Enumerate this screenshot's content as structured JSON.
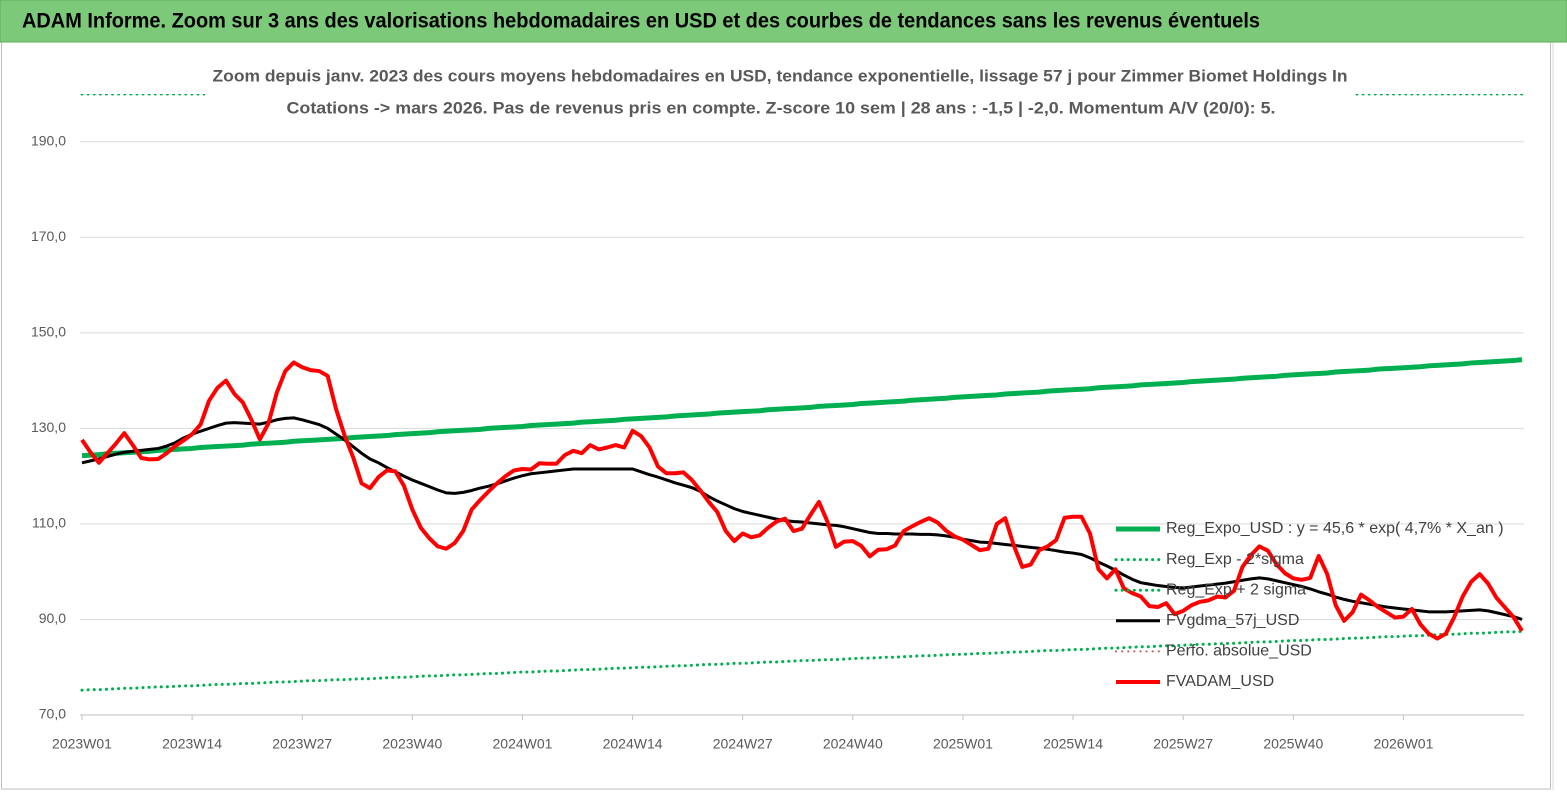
{
  "chart_data": {
    "type": "line",
    "title": "ADAM Informe. Zoom sur 3 ans des valorisations hebdomadaires en USD et des courbes de tendances sans les revenus éventuels",
    "subtitle": [
      "Zoom depuis janv. 2023 des cours moyens hebdomadaires en USD, tendance exponentielle, lissage 57 j pour Zimmer Biomet Holdings In",
      "Cotations -> mars 2026. Pas de revenus pris en  compte. Z-score 10 sem  | 28 ans : -1,5 | -2,0. Momentum A/V (20/0): 5."
    ],
    "ylim": [
      70,
      200
    ],
    "yticks": [
      {
        "value": 70,
        "label": "70,0"
      },
      {
        "value": 90,
        "label": "90,0"
      },
      {
        "value": 110,
        "label": "110,0"
      },
      {
        "value": 130,
        "label": "130,0"
      },
      {
        "value": 150,
        "label": "150,0"
      },
      {
        "value": 170,
        "label": "170,0"
      },
      {
        "value": 190,
        "label": "190,0"
      }
    ],
    "grid": true,
    "legend": "right",
    "categories": [
      "2023W01",
      null,
      null,
      null,
      null,
      null,
      null,
      null,
      null,
      null,
      null,
      null,
      null,
      "2023W14",
      null,
      null,
      null,
      null,
      null,
      null,
      null,
      null,
      null,
      null,
      null,
      null,
      "2023W27",
      null,
      null,
      null,
      null,
      null,
      null,
      null,
      null,
      null,
      null,
      null,
      null,
      "2023W40",
      null,
      null,
      null,
      null,
      null,
      null,
      null,
      null,
      null,
      null,
      null,
      null,
      "2024W01",
      null,
      null,
      null,
      null,
      null,
      null,
      null,
      null,
      null,
      null,
      null,
      null,
      "2024W14",
      null,
      null,
      null,
      null,
      null,
      null,
      null,
      null,
      null,
      null,
      null,
      null,
      "2024W27",
      null,
      null,
      null,
      null,
      null,
      null,
      null,
      null,
      null,
      null,
      null,
      null,
      "2024W40",
      null,
      null,
      null,
      null,
      null,
      null,
      null,
      null,
      null,
      null,
      null,
      null,
      "2025W01",
      null,
      null,
      null,
      null,
      null,
      null,
      null,
      null,
      null,
      null,
      null,
      null,
      "2025W14",
      null,
      null,
      null,
      null,
      null,
      null,
      null,
      null,
      null,
      null,
      null,
      null,
      "2025W27",
      null,
      null,
      null,
      null,
      null,
      null,
      null,
      null,
      null,
      null,
      null,
      null,
      "2025W40",
      null,
      null,
      null,
      null,
      null,
      null,
      null,
      null,
      null,
      null,
      null,
      null,
      "2026W01",
      null,
      null,
      null,
      null,
      null,
      null,
      null,
      null,
      null,
      null,
      null,
      null,
      null,
      null
    ],
    "series": [
      {
        "name": "Reg_Expo_USD : y = 45,6 * exp( 4,7% *  X_an )",
        "color": "#00b050",
        "style": "solid",
        "width": 5,
        "values": [
          124.3,
          124.4,
          124.5,
          124.7,
          124.8,
          124.9,
          125.0,
          125.1,
          125.2,
          125.4,
          125.5,
          125.6,
          125.7,
          125.8,
          126.0,
          126.1,
          126.2,
          126.3,
          126.4,
          126.5,
          126.7,
          126.8,
          126.9,
          127.0,
          127.1,
          127.3,
          127.4,
          127.5,
          127.6,
          127.7,
          127.8,
          127.9,
          128.1,
          128.2,
          128.3,
          128.4,
          128.5,
          128.7,
          128.8,
          128.9,
          129.0,
          129.1,
          129.3,
          129.4,
          129.5,
          129.6,
          129.7,
          129.8,
          130.0,
          130.1,
          130.2,
          130.3,
          130.4,
          130.6,
          130.7,
          130.8,
          130.9,
          131.0,
          131.1,
          131.3,
          131.4,
          131.5,
          131.6,
          131.7,
          131.9,
          132.0,
          132.1,
          132.2,
          132.3,
          132.4,
          132.6,
          132.7,
          132.8,
          132.9,
          133.0,
          133.2,
          133.3,
          133.4,
          133.5,
          133.6,
          133.7,
          133.9,
          134.0,
          134.1,
          134.2,
          134.3,
          134.4,
          134.6,
          134.7,
          134.8,
          134.9,
          135.0,
          135.2,
          135.3,
          135.4,
          135.5,
          135.6,
          135.7,
          135.9,
          136.0,
          136.1,
          136.2,
          136.3,
          136.5,
          136.6,
          136.7,
          136.8,
          136.9,
          137.0,
          137.2,
          137.3,
          137.4,
          137.5,
          137.6,
          137.8,
          137.9,
          138.0,
          138.1,
          138.2,
          138.3,
          138.5,
          138.6,
          138.7,
          138.8,
          138.9,
          139.1,
          139.2,
          139.3,
          139.4,
          139.5,
          139.6,
          139.8,
          139.9,
          140.0,
          140.1,
          140.2,
          140.3,
          140.5,
          140.6,
          140.7,
          140.8,
          140.9,
          141.1,
          141.2,
          141.3,
          141.4,
          141.5,
          141.6,
          141.8,
          141.9,
          142.0,
          142.1,
          142.2,
          142.4,
          142.5,
          142.6,
          142.7,
          142.8,
          142.9,
          143.1,
          143.2,
          143.3,
          143.4,
          143.5,
          143.7,
          143.8,
          143.9,
          144.0,
          144.1,
          144.2,
          144.4
        ]
      },
      {
        "name": "Reg_Exp - 2*sigma",
        "color": "#00b050",
        "style": "dotted",
        "width": 3,
        "values": [
          75.2,
          75.3,
          75.3,
          75.4,
          75.5,
          75.6,
          75.6,
          75.7,
          75.8,
          75.9,
          75.9,
          76.0,
          76.1,
          76.1,
          76.2,
          76.3,
          76.4,
          76.4,
          76.5,
          76.6,
          76.6,
          76.7,
          76.8,
          76.9,
          76.9,
          77.0,
          77.1,
          77.2,
          77.2,
          77.3,
          77.4,
          77.4,
          77.5,
          77.6,
          77.6,
          77.7,
          77.8,
          77.9,
          77.9,
          78.0,
          78.1,
          78.2,
          78.2,
          78.3,
          78.4,
          78.4,
          78.5,
          78.6,
          78.7,
          78.7,
          78.8,
          78.9,
          79.0,
          79.0,
          79.1,
          79.2,
          79.2,
          79.3,
          79.4,
          79.5,
          79.5,
          79.6,
          79.7,
          79.8,
          79.8,
          79.9,
          80.0,
          80.0,
          80.1,
          80.2,
          80.3,
          80.3,
          80.4,
          80.5,
          80.6,
          80.6,
          80.7,
          80.8,
          80.8,
          80.9,
          81.0,
          81.1,
          81.1,
          81.2,
          81.3,
          81.4,
          81.4,
          81.5,
          81.6,
          81.6,
          81.7,
          81.8,
          81.9,
          81.9,
          82.0,
          82.1,
          82.1,
          82.2,
          82.3,
          82.4,
          82.4,
          82.5,
          82.6,
          82.7,
          82.7,
          82.8,
          82.9,
          82.9,
          83.0,
          83.1,
          83.2,
          83.2,
          83.3,
          83.4,
          83.5,
          83.5,
          83.6,
          83.7,
          83.7,
          83.8,
          83.9,
          84.0,
          84.0,
          84.1,
          84.2,
          84.3,
          84.3,
          84.4,
          84.5,
          84.5,
          84.6,
          84.7,
          84.8,
          84.8,
          84.9,
          85.0,
          85.0,
          85.1,
          85.2,
          85.3,
          85.3,
          85.4,
          85.5,
          85.6,
          85.6,
          85.7,
          85.8,
          85.8,
          85.9,
          86.0,
          86.1,
          86.1,
          86.2,
          86.3,
          86.4,
          86.4,
          86.5,
          86.6,
          86.6,
          86.7,
          86.8,
          86.9,
          86.9,
          87.0,
          87.1,
          87.1,
          87.2,
          87.3,
          87.4,
          87.4,
          87.5
        ]
      },
      {
        "name": "Reg_Exp + 2 sigma",
        "color": "#00b050",
        "style": "dotted",
        "width": 3,
        "values": [
          200,
          200,
          200,
          200,
          200,
          200,
          200,
          200,
          200,
          200,
          200,
          200,
          200,
          200,
          200,
          200,
          200,
          200,
          200,
          200,
          200,
          200,
          200,
          200,
          200,
          200,
          200,
          200,
          200,
          200,
          200,
          200,
          200,
          200,
          200,
          200,
          200,
          200,
          200,
          200,
          200,
          200,
          200,
          200,
          200,
          200,
          200,
          200,
          200,
          200,
          200,
          200,
          200,
          200,
          200,
          200,
          200,
          200,
          200,
          200,
          200,
          200,
          200,
          200,
          200,
          200,
          200,
          200,
          200,
          200,
          200,
          200,
          200,
          200,
          200,
          200,
          200,
          200,
          200,
          200,
          200,
          200,
          200,
          200,
          200,
          200,
          200,
          200,
          200,
          200,
          200,
          200,
          200,
          200,
          200,
          200,
          200,
          200,
          200,
          200,
          200,
          200,
          200,
          200,
          200,
          200,
          200,
          200,
          200,
          200,
          200,
          200,
          200,
          200,
          200,
          200,
          200,
          200,
          200,
          200,
          200,
          200,
          200,
          200,
          200,
          200,
          200,
          200,
          200,
          200,
          200,
          200,
          200,
          200,
          200,
          200,
          200,
          200,
          200,
          200,
          200,
          200,
          200,
          200,
          200,
          200,
          200,
          200,
          200,
          200,
          200,
          200,
          200,
          200,
          200,
          200,
          200,
          200,
          200,
          200,
          200,
          200,
          200,
          200,
          200,
          200,
          200,
          200,
          200,
          200,
          200
        ]
      },
      {
        "name": "FVgdma_57j_USD",
        "color": "#000000",
        "style": "solid",
        "width": 3,
        "values": [
          122.8,
          123.2,
          123.6,
          124.1,
          124.6,
          125.0,
          125.2,
          125.4,
          125.6,
          125.8,
          126.3,
          127.0,
          128.0,
          128.8,
          129.4,
          130.0,
          130.6,
          131.1,
          131.2,
          131.1,
          131.0,
          130.9,
          131.3,
          131.8,
          132.1,
          132.2,
          131.8,
          131.3,
          130.8,
          130.0,
          128.8,
          127.6,
          126.2,
          124.8,
          123.6,
          122.8,
          121.8,
          120.9,
          120.0,
          119.2,
          118.5,
          117.8,
          117.1,
          116.5,
          116.4,
          116.6,
          117.0,
          117.5,
          117.9,
          118.4,
          119.0,
          119.6,
          120.1,
          120.5,
          120.7,
          120.9,
          121.1,
          121.3,
          121.5,
          121.5,
          121.5,
          121.5,
          121.5,
          121.5,
          121.5,
          121.5,
          120.9,
          120.3,
          119.8,
          119.2,
          118.6,
          118.1,
          117.6,
          116.8,
          115.7,
          114.8,
          114.0,
          113.2,
          112.6,
          112.2,
          111.8,
          111.4,
          111.0,
          110.7,
          110.5,
          110.4,
          110.2,
          110.0,
          109.8,
          109.7,
          109.4,
          109.0,
          108.6,
          108.2,
          108.0,
          108.0,
          107.9,
          107.9,
          107.9,
          107.8,
          107.8,
          107.7,
          107.5,
          107.2,
          106.8,
          106.5,
          106.2,
          106.1,
          105.9,
          105.7,
          105.5,
          105.3,
          105.1,
          104.9,
          104.7,
          104.4,
          104.1,
          103.9,
          103.6,
          102.9,
          102.0,
          101.2,
          100.3,
          99.3,
          98.4,
          97.7,
          97.4,
          97.1,
          96.9,
          96.7,
          96.6,
          96.8,
          97.0,
          97.2,
          97.4,
          97.6,
          97.9,
          98.2,
          98.5,
          98.7,
          98.5,
          98.1,
          97.7,
          97.3,
          96.9,
          96.4,
          95.8,
          95.3,
          94.7,
          94.2,
          93.8,
          93.5,
          93.2,
          92.9,
          92.6,
          92.4,
          92.2,
          92.0,
          91.8,
          91.6,
          91.6,
          91.6,
          91.7,
          91.8,
          91.9,
          92.0,
          91.8,
          91.4,
          91.0,
          90.6,
          90.0
        ]
      },
      {
        "name": "Perfo. absolue_USD",
        "color": "#c0504d",
        "style": "dotted",
        "width": 2
      },
      {
        "name": "FVADAM_USD",
        "color": "#ff0000",
        "style": "solid",
        "width": 4,
        "values": [
          127.6,
          125,
          122.8,
          124.8,
          126.8,
          129,
          126.5,
          123.8,
          123.5,
          123.6,
          124.8,
          126.3,
          127.5,
          128.8,
          130.8,
          135.8,
          138.5,
          140,
          137.2,
          135.4,
          131.8,
          127.7,
          131,
          137.5,
          142,
          143.8,
          142.8,
          142.2,
          142,
          141,
          134,
          128.5,
          124,
          118.5,
          117.5,
          119.8,
          121.2,
          121,
          118,
          113,
          109.2,
          107,
          105.3,
          104.8,
          106,
          108.5,
          113,
          115,
          116.8,
          118.5,
          120,
          121.2,
          121.5,
          121.4,
          122.7,
          122.6,
          122.6,
          124.4,
          125.3,
          124.8,
          126.5,
          125.6,
          126,
          126.5,
          126,
          129.5,
          128.4,
          126,
          122,
          120.6,
          120.6,
          120.8,
          119.2,
          117,
          114.6,
          112.5,
          108.5,
          106.4,
          108,
          107.2,
          107.6,
          109.2,
          110.5,
          111.1,
          108.5,
          109,
          111.9,
          114.6,
          110.5,
          105.2,
          106.3,
          106.4,
          105.4,
          103.2,
          104.6,
          104.7,
          105.5,
          108.5,
          109.5,
          110.4,
          111.2,
          110.3,
          108.6,
          107.4,
          106.7,
          105.6,
          104.5,
          104.8,
          110,
          111.2,
          105.5,
          101,
          101.5,
          104.5,
          105.3,
          106.6,
          111.3,
          111.5,
          111.5,
          108,
          100.5,
          98.6,
          100.5,
          96.5,
          95.5,
          94.8,
          92.8,
          92.6,
          93.4,
          91.1,
          91.8,
          93,
          93.7,
          94,
          94.8,
          94.6,
          96,
          101,
          103.5,
          105.3,
          104.4,
          101.6,
          99.7,
          98.6,
          98.3,
          98.7,
          103.3,
          99.5,
          93,
          89.7,
          91.5,
          95.2,
          94,
          92.6,
          91.5,
          90.4,
          90.6,
          92.2,
          89,
          87,
          86,
          87,
          90.5,
          94.8,
          97.9,
          99.5,
          97.5,
          94.5,
          92.5,
          90.5,
          87.6
        ]
      }
    ]
  }
}
